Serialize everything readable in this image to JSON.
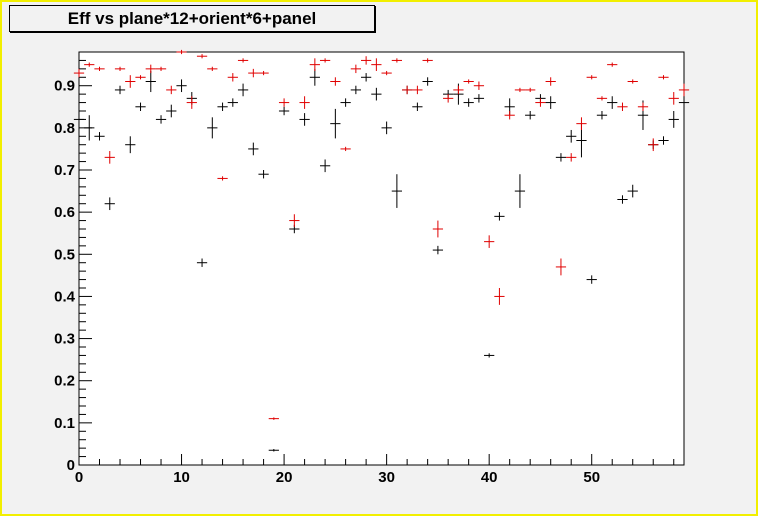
{
  "chart_data": {
    "type": "scatter",
    "title": "Eff vs plane*12+orient*6+panel",
    "xlabel": "",
    "ylabel": "",
    "xlim": [
      0,
      59
    ],
    "ylim": [
      0,
      0.98
    ],
    "grid": false,
    "x_ticks": [
      "0",
      "10",
      "20",
      "30",
      "40",
      "50"
    ],
    "y_ticks": [
      "0",
      "0.1",
      "0.2",
      "0.3",
      "0.4",
      "0.5",
      "0.6",
      "0.7",
      "0.8",
      "0.9"
    ],
    "colors": {
      "series_black": "#000000",
      "series_red": "#e00000",
      "frame_border": "#f2ef00",
      "background": "#f2f2f2"
    },
    "series": [
      {
        "color": "#000000",
        "x": [
          0,
          1,
          2,
          3,
          4,
          5,
          6,
          7,
          8,
          9,
          10,
          11,
          12,
          13,
          14,
          15,
          16,
          17,
          18,
          19,
          20,
          21,
          22,
          23,
          24,
          25,
          26,
          27,
          28,
          29,
          30,
          31,
          32,
          33,
          34,
          35,
          36,
          37,
          38,
          39,
          40,
          41,
          42,
          43,
          44,
          45,
          46,
          47,
          48,
          49,
          50,
          51,
          52,
          53,
          54,
          55,
          56,
          57,
          58,
          59
        ],
        "y": [
          0.82,
          0.8,
          0.78,
          0.62,
          0.89,
          0.76,
          0.85,
          0.91,
          0.82,
          0.84,
          0.9,
          0.87,
          0.48,
          0.8,
          0.85,
          0.86,
          0.89,
          0.75,
          0.69,
          0.035,
          0.84,
          0.56,
          0.82,
          0.92,
          0.71,
          0.81,
          0.86,
          0.89,
          0.92,
          0.88,
          0.8,
          0.65,
          0.89,
          0.85,
          0.91,
          0.51,
          0.88,
          0.88,
          0.86,
          0.87,
          0.26,
          0.59,
          0.85,
          0.65,
          0.83,
          0.87,
          0.86,
          0.73,
          0.78,
          0.77,
          0.44,
          0.83,
          0.86,
          0.63,
          0.65,
          0.83,
          0.76,
          0.77,
          0.82,
          0.86
        ],
        "yerr": [
          0.02,
          0.03,
          0.01,
          0.015,
          0.01,
          0.02,
          0.01,
          0.025,
          0.01,
          0.015,
          0.015,
          0.015,
          0.01,
          0.025,
          0.01,
          0.01,
          0.015,
          0.015,
          0.01,
          0.003,
          0.01,
          0.01,
          0.015,
          0.02,
          0.015,
          0.035,
          0.01,
          0.01,
          0.01,
          0.015,
          0.015,
          0.04,
          0.01,
          0.01,
          0.01,
          0.01,
          0.01,
          0.025,
          0.01,
          0.01,
          0.005,
          0.01,
          0.02,
          0.04,
          0.01,
          0.01,
          0.015,
          0.01,
          0.015,
          0.04,
          0.01,
          0.01,
          0.015,
          0.01,
          0.015,
          0.035,
          0.01,
          0.01,
          0.02,
          0.02
        ]
      },
      {
        "color": "#e00000",
        "x": [
          0,
          1,
          2,
          3,
          4,
          5,
          6,
          7,
          8,
          9,
          10,
          11,
          12,
          13,
          14,
          15,
          16,
          17,
          18,
          19,
          20,
          21,
          22,
          23,
          24,
          25,
          26,
          27,
          28,
          29,
          30,
          31,
          32,
          33,
          34,
          35,
          36,
          37,
          38,
          39,
          40,
          41,
          42,
          43,
          44,
          45,
          46,
          47,
          48,
          49,
          50,
          51,
          52,
          53,
          54,
          55,
          56,
          57,
          58,
          59
        ],
        "y": [
          0.93,
          0.95,
          0.94,
          0.73,
          0.94,
          0.91,
          0.92,
          0.94,
          0.94,
          0.89,
          0.98,
          0.86,
          0.97,
          0.94,
          0.68,
          0.92,
          0.96,
          0.93,
          0.93,
          0.11,
          0.86,
          0.58,
          0.86,
          0.95,
          0.96,
          0.91,
          0.75,
          0.94,
          0.96,
          0.95,
          0.93,
          0.96,
          0.89,
          0.89,
          0.96,
          0.56,
          0.87,
          0.89,
          0.91,
          0.9,
          0.53,
          0.4,
          0.83,
          0.89,
          0.89,
          0.86,
          0.91,
          0.47,
          0.73,
          0.81,
          0.92,
          0.87,
          0.95,
          0.85,
          0.91,
          0.85,
          0.76,
          0.92,
          0.87,
          0.89
        ],
        "yerr": [
          0.01,
          0.005,
          0.005,
          0.015,
          0.005,
          0.015,
          0.005,
          0.01,
          0.005,
          0.01,
          0.005,
          0.015,
          0.005,
          0.005,
          0.005,
          0.01,
          0.005,
          0.01,
          0.005,
          0.003,
          0.01,
          0.015,
          0.015,
          0.015,
          0.005,
          0.01,
          0.005,
          0.01,
          0.01,
          0.015,
          0.005,
          0.005,
          0.01,
          0.01,
          0.005,
          0.02,
          0.01,
          0.01,
          0.005,
          0.01,
          0.015,
          0.02,
          0.01,
          0.005,
          0.005,
          0.01,
          0.01,
          0.02,
          0.01,
          0.015,
          0.005,
          0.005,
          0.005,
          0.01,
          0.005,
          0.01,
          0.015,
          0.005,
          0.015,
          0.015
        ]
      }
    ]
  }
}
